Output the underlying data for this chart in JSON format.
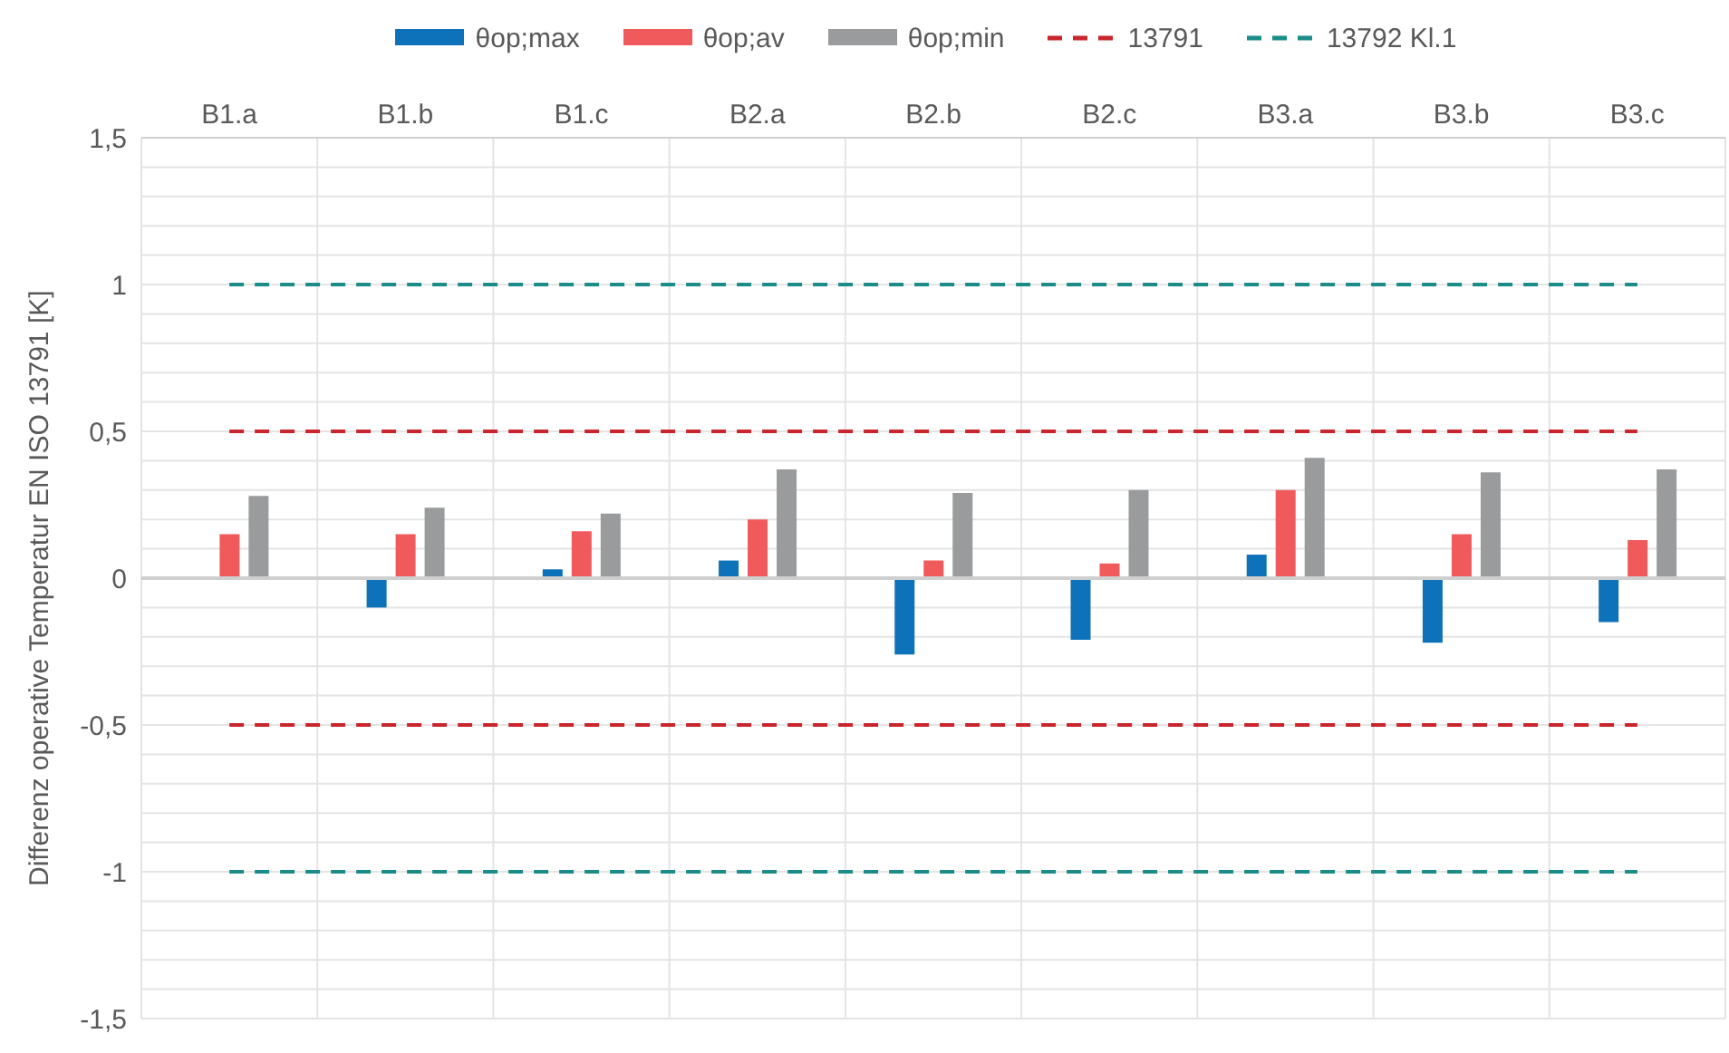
{
  "chart_data": {
    "type": "bar",
    "ylabel": "Differenz operative Temperatur EN ISO 13791 [K]",
    "categories": [
      "B1.a",
      "B1.b",
      "B1.c",
      "B2.a",
      "B2.b",
      "B2.c",
      "B3.a",
      "B3.b",
      "B3.c"
    ],
    "series": [
      {
        "name": "θop;max",
        "color": "#0e72bb",
        "values": [
          0,
          -0.1,
          0.03,
          0.06,
          -0.26,
          -0.21,
          0.08,
          -0.22,
          -0.15
        ]
      },
      {
        "name": "θop;av",
        "color": "#f05a5c",
        "values": [
          0.15,
          0.15,
          0.16,
          0.2,
          0.06,
          0.05,
          0.3,
          0.15,
          0.13
        ]
      },
      {
        "name": "θop;min",
        "color": "#999b9c",
        "values": [
          0.28,
          0.24,
          0.22,
          0.37,
          0.29,
          0.3,
          0.41,
          0.36,
          0.37
        ]
      },
      {
        "name": "13791",
        "type": "line",
        "line_style": "dashed",
        "color": "#c8262c",
        "values": [
          0.5,
          0.5,
          0.5,
          0.5,
          0.5,
          0.5,
          0.5,
          0.5,
          0.5
        ]
      },
      {
        "type": "line",
        "line_style": "dashed",
        "color": "#c8262c",
        "values": [
          -0.5,
          -0.5,
          -0.5,
          -0.5,
          -0.5,
          -0.5,
          -0.5,
          -0.5,
          -0.5
        ]
      },
      {
        "name": "13792 Kl.1",
        "type": "line",
        "line_style": "dashed",
        "color": "#1b8c87",
        "values": [
          1,
          1,
          1,
          1,
          1,
          1,
          1,
          1,
          1
        ]
      },
      {
        "type": "line",
        "line_style": "dashed",
        "color": "#1b8c87",
        "values": [
          -1,
          -1,
          -1,
          -1,
          -1,
          -1,
          -1,
          -1,
          -1
        ]
      }
    ],
    "ylim": [
      -1.5,
      1.5
    ],
    "yticks": [
      {
        "value": -1.5,
        "label": "-1,5"
      },
      {
        "value": -1.4,
        "label": null
      },
      {
        "value": -1.3,
        "label": null
      },
      {
        "value": -1.2,
        "label": null
      },
      {
        "value": -1.1,
        "label": null
      },
      -1,
      {
        "value": -0.9,
        "label": null
      },
      {
        "value": -0.8,
        "label": null
      },
      {
        "value": -0.7,
        "label": null
      },
      {
        "value": -0.6,
        "label": null
      },
      {
        "value": -0.5,
        "label": "-0,5"
      },
      {
        "value": -0.4,
        "label": null
      },
      {
        "value": -0.3,
        "label": null
      },
      {
        "value": -0.2,
        "label": null
      },
      {
        "value": -0.1,
        "label": null
      },
      0,
      {
        "value": 0.1,
        "label": null
      },
      {
        "value": 0.2,
        "label": null
      },
      {
        "value": 0.3,
        "label": null
      },
      {
        "value": 0.4,
        "label": null
      },
      {
        "value": 0.5,
        "label": "0,5"
      },
      {
        "value": 0.6,
        "label": null
      },
      {
        "value": 0.7,
        "label": null
      },
      {
        "value": 0.8,
        "label": null
      },
      {
        "value": 0.9,
        "label": null
      },
      1,
      {
        "value": 1.1,
        "label": null
      },
      {
        "value": 1.2,
        "label": null
      },
      {
        "value": 1.3,
        "label": null
      },
      {
        "value": 1.4,
        "label": null
      },
      {
        "value": 1.5,
        "label": "1,5"
      }
    ],
    "grid": true,
    "legend": "top"
  }
}
